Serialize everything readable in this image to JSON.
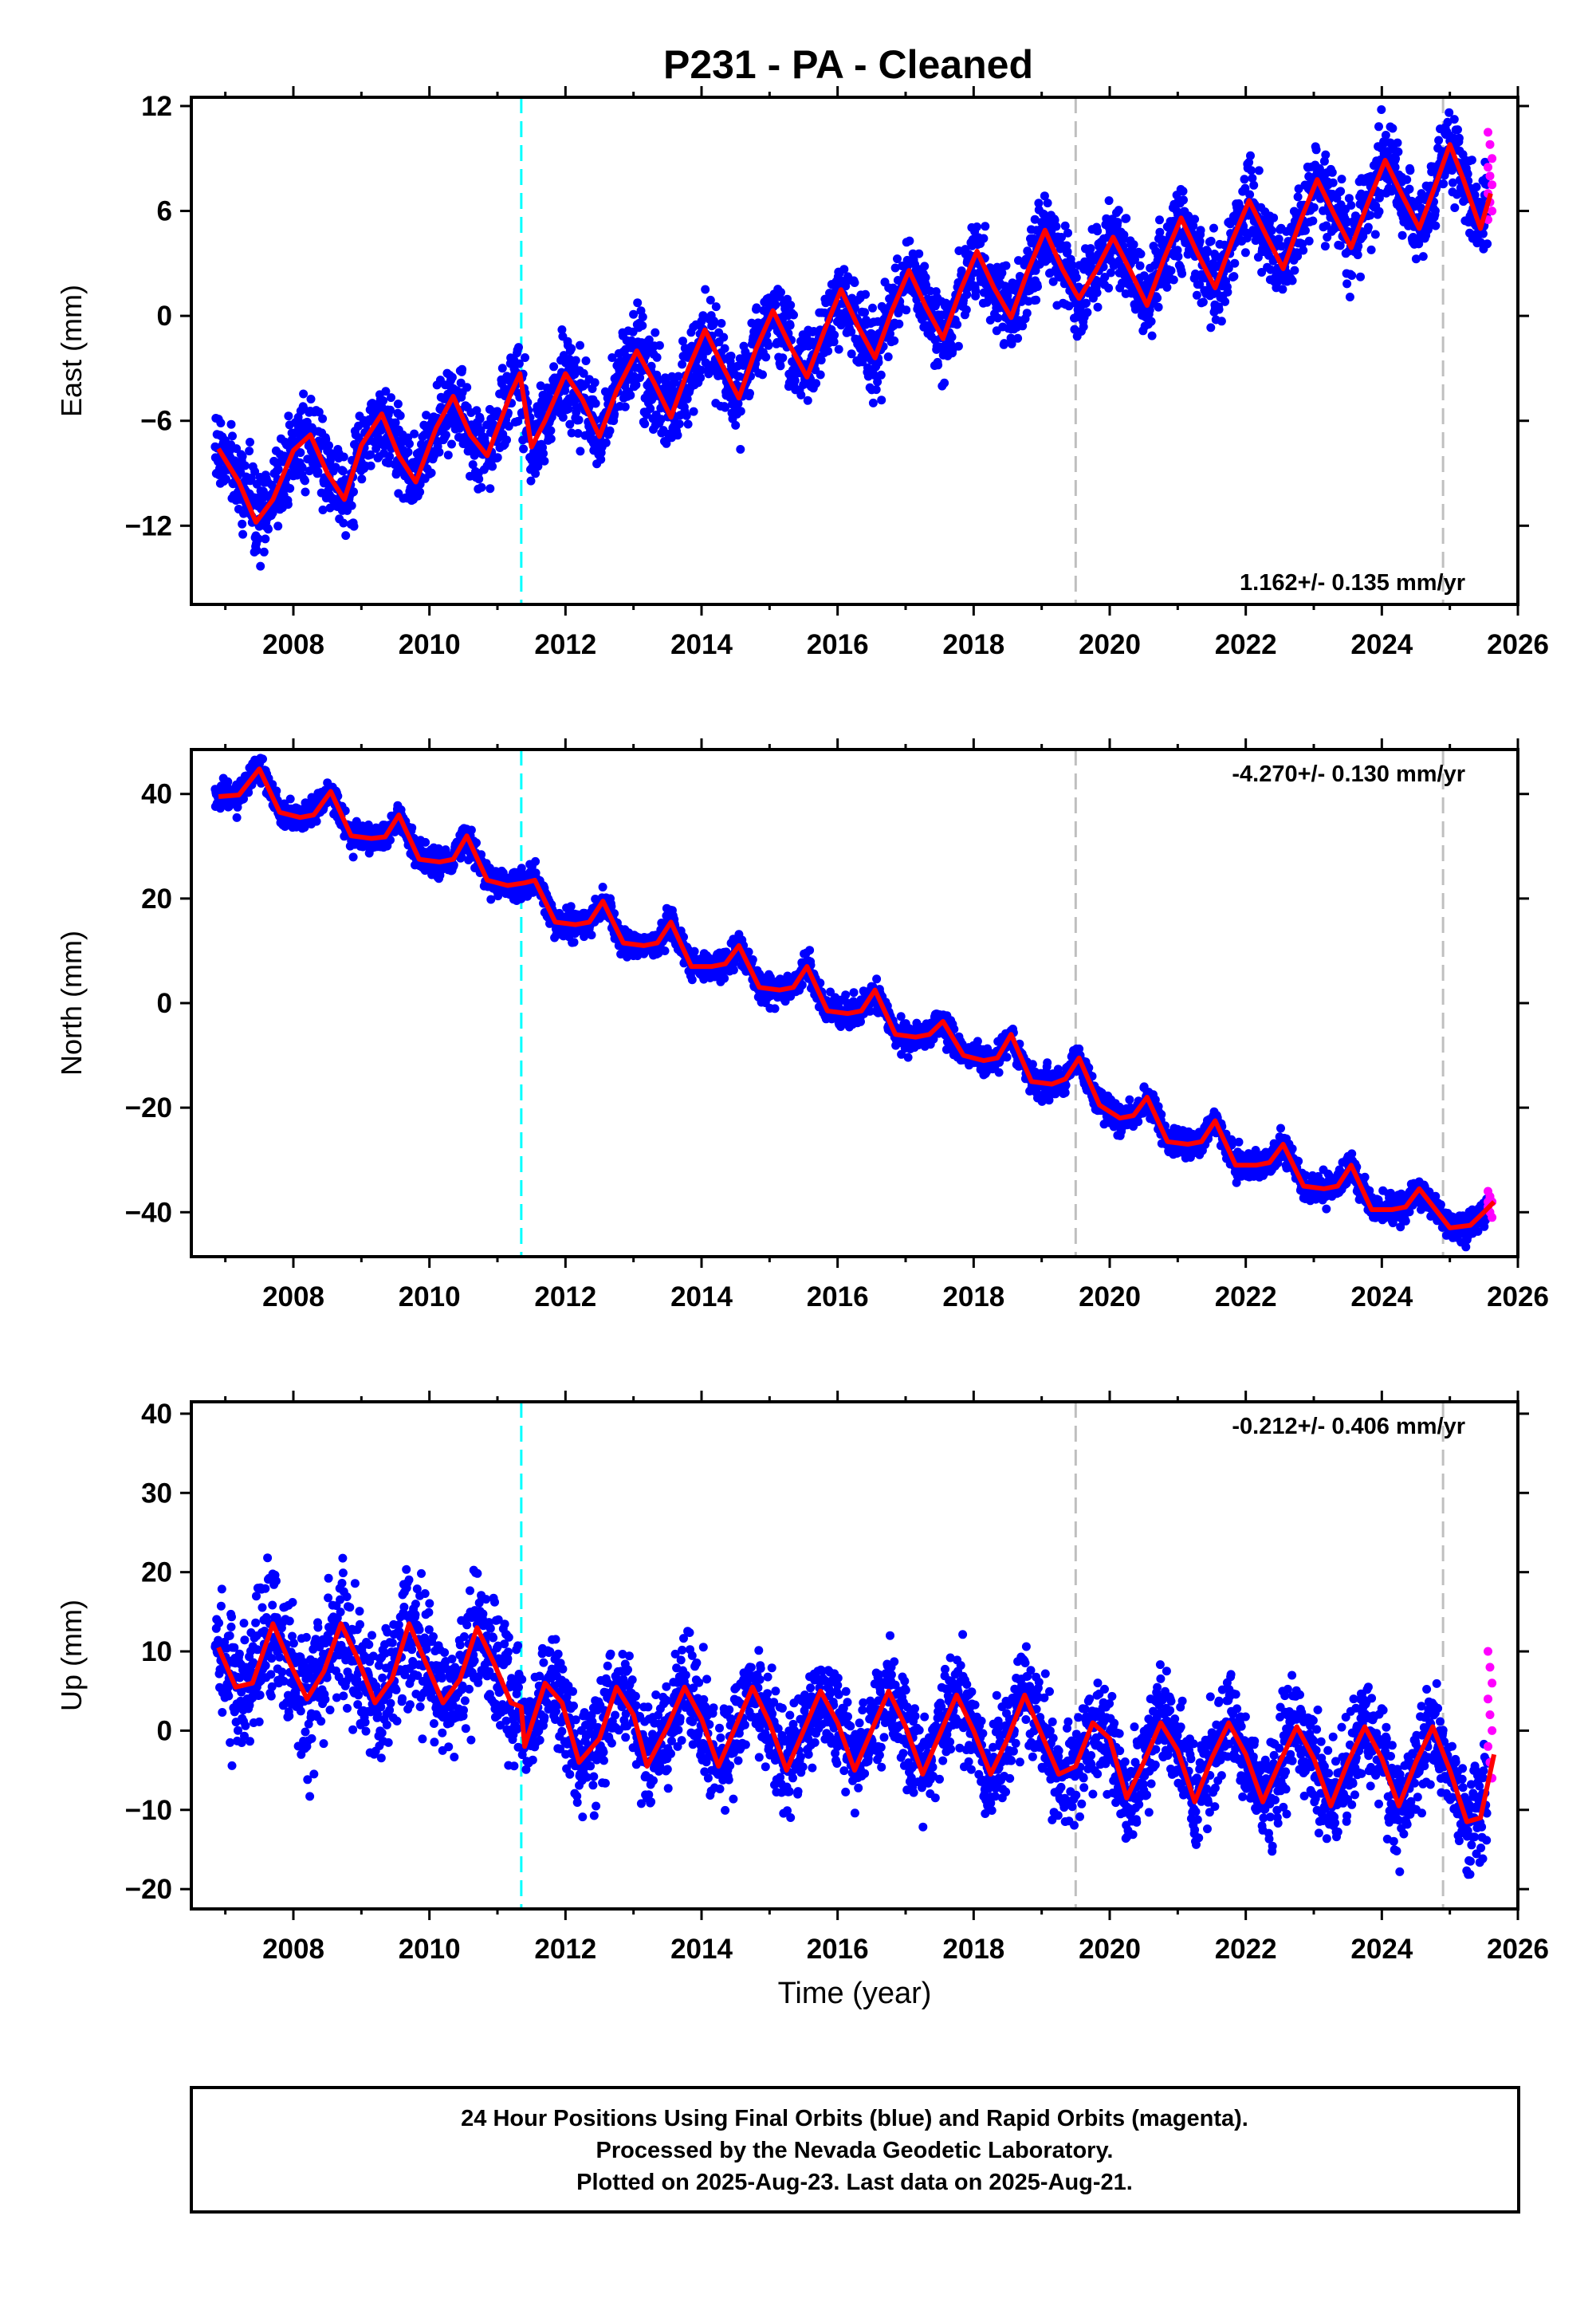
{
  "title": "P231  - PA - Cleaned",
  "colors": {
    "final_orbits": "#0000ff",
    "rapid_orbits": "#ff00ff",
    "model": "#ff0000",
    "antenna_change": "#00ffff",
    "equipment_change": "#bfbfbf"
  },
  "chart_data": [
    {
      "type": "scatter",
      "component": "East",
      "ylabel": "East (mm)",
      "ylim": [
        -16.5,
        12.5
      ],
      "yticks": [
        -12,
        -6,
        0,
        6,
        12
      ],
      "xlim": [
        2006.5,
        2026
      ],
      "xticks": [
        2008,
        2010,
        2012,
        2014,
        2016,
        2018,
        2020,
        2022,
        2024,
        2026
      ],
      "rate_label": "1.162+/- 0.135 mm/yr",
      "rate_position": "bottom-right",
      "trend": {
        "intercept_2007": -7.6,
        "rate": 0.93
      },
      "seasonal_amplitude": 2.4,
      "offsets": [
        {
          "at": 2019.5,
          "delta": -1.2
        }
      ],
      "rapid_points": [
        10.5,
        9.8,
        9.0,
        8.5,
        8.0,
        7.5,
        7.0,
        6.5,
        6.0,
        5.5
      ],
      "model_points": [
        [
          2006.9,
          -7.6
        ],
        [
          2007.2,
          -9.5
        ],
        [
          2007.45,
          -11.8
        ],
        [
          2007.7,
          -10.5
        ],
        [
          2008.0,
          -7.7
        ],
        [
          2008.25,
          -6.8
        ],
        [
          2008.5,
          -9.0
        ],
        [
          2008.75,
          -10.5
        ],
        [
          2009.0,
          -7.4
        ],
        [
          2009.3,
          -5.6
        ],
        [
          2009.55,
          -8.0
        ],
        [
          2009.8,
          -9.5
        ],
        [
          2010.1,
          -6.4
        ],
        [
          2010.35,
          -4.6
        ],
        [
          2010.6,
          -6.8
        ],
        [
          2010.85,
          -8.0
        ],
        [
          2011.2,
          -4.4
        ],
        [
          2011.33,
          -3.3
        ],
        [
          2011.5,
          -7.5
        ],
        [
          2011.7,
          -6.0
        ],
        [
          2012.0,
          -3.3
        ],
        [
          2012.25,
          -4.8
        ],
        [
          2012.5,
          -6.9
        ],
        [
          2012.75,
          -4.3
        ],
        [
          2013.05,
          -2.0
        ],
        [
          2013.3,
          -3.8
        ],
        [
          2013.55,
          -5.8
        ],
        [
          2013.8,
          -3.1
        ],
        [
          2014.05,
          -0.8
        ],
        [
          2014.3,
          -2.8
        ],
        [
          2014.55,
          -4.7
        ],
        [
          2014.8,
          -1.9
        ],
        [
          2015.05,
          0.3
        ],
        [
          2015.3,
          -1.7
        ],
        [
          2015.55,
          -3.5
        ],
        [
          2015.8,
          -0.9
        ],
        [
          2016.05,
          1.5
        ],
        [
          2016.3,
          -0.6
        ],
        [
          2016.55,
          -2.4
        ],
        [
          2016.8,
          0.3
        ],
        [
          2017.05,
          2.6
        ],
        [
          2017.3,
          0.5
        ],
        [
          2017.55,
          -1.3
        ],
        [
          2017.8,
          1.4
        ],
        [
          2018.05,
          3.7
        ],
        [
          2018.3,
          1.6
        ],
        [
          2018.55,
          -0.1
        ],
        [
          2018.8,
          2.6
        ],
        [
          2019.05,
          4.9
        ],
        [
          2019.3,
          2.7
        ],
        [
          2019.5,
          1.3
        ],
        [
          2019.55,
          1.0
        ],
        [
          2019.8,
          2.6
        ],
        [
          2020.05,
          4.5
        ],
        [
          2020.3,
          2.6
        ],
        [
          2020.55,
          0.6
        ],
        [
          2020.8,
          3.3
        ],
        [
          2021.05,
          5.6
        ],
        [
          2021.3,
          3.5
        ],
        [
          2021.55,
          1.6
        ],
        [
          2021.8,
          4.3
        ],
        [
          2022.05,
          6.6
        ],
        [
          2022.3,
          4.6
        ],
        [
          2022.55,
          2.7
        ],
        [
          2022.8,
          5.4
        ],
        [
          2023.05,
          7.8
        ],
        [
          2023.3,
          5.8
        ],
        [
          2023.55,
          3.9
        ],
        [
          2023.8,
          6.5
        ],
        [
          2024.05,
          8.9
        ],
        [
          2024.3,
          6.9
        ],
        [
          2024.55,
          5.0
        ],
        [
          2024.8,
          7.6
        ],
        [
          2025.0,
          9.8
        ],
        [
          2025.2,
          7.8
        ],
        [
          2025.45,
          5.0
        ],
        [
          2025.6,
          7.0
        ]
      ]
    },
    {
      "type": "scatter",
      "component": "North",
      "ylabel": "North (mm)",
      "ylim": [
        -48.5,
        48.5
      ],
      "yticks": [
        -40,
        -20,
        0,
        20,
        40
      ],
      "xlim": [
        2006.5,
        2026
      ],
      "xticks": [
        2008,
        2010,
        2012,
        2014,
        2016,
        2018,
        2020,
        2022,
        2024,
        2026
      ],
      "rate_label": "-4.270+/- 0.130 mm/yr",
      "rate_position": "top-right",
      "trend": {
        "intercept_2007": 40.0,
        "rate": -4.5
      },
      "seasonal_amplitude": 3.5,
      "offsets": [],
      "rapid_points": [
        -36,
        -37,
        -38,
        -39,
        -40,
        -41,
        -38,
        -37
      ],
      "model_points": [
        [
          2006.9,
          39.5
        ],
        [
          2007.2,
          39.8
        ],
        [
          2007.5,
          44.8
        ],
        [
          2007.8,
          36.5
        ],
        [
          2008.1,
          35.5
        ],
        [
          2008.3,
          36.0
        ],
        [
          2008.55,
          40.5
        ],
        [
          2008.85,
          32.0
        ],
        [
          2009.15,
          31.5
        ],
        [
          2009.35,
          31.8
        ],
        [
          2009.55,
          36.0
        ],
        [
          2009.85,
          27.5
        ],
        [
          2010.15,
          27.0
        ],
        [
          2010.35,
          27.5
        ],
        [
          2010.55,
          32.0
        ],
        [
          2010.85,
          23.5
        ],
        [
          2011.15,
          22.5
        ],
        [
          2011.4,
          23.0
        ],
        [
          2011.55,
          23.5
        ],
        [
          2011.85,
          15.5
        ],
        [
          2012.15,
          15.0
        ],
        [
          2012.35,
          15.5
        ],
        [
          2012.55,
          19.5
        ],
        [
          2012.85,
          11.5
        ],
        [
          2013.15,
          11.0
        ],
        [
          2013.35,
          11.5
        ],
        [
          2013.55,
          15.5
        ],
        [
          2013.85,
          7.0
        ],
        [
          2014.15,
          7.0
        ],
        [
          2014.35,
          7.5
        ],
        [
          2014.55,
          11.0
        ],
        [
          2014.85,
          3.0
        ],
        [
          2015.15,
          2.5
        ],
        [
          2015.35,
          3.0
        ],
        [
          2015.55,
          7.0
        ],
        [
          2015.85,
          -1.5
        ],
        [
          2016.15,
          -2.0
        ],
        [
          2016.35,
          -1.5
        ],
        [
          2016.55,
          2.5
        ],
        [
          2016.85,
          -6.0
        ],
        [
          2017.15,
          -6.5
        ],
        [
          2017.35,
          -6.0
        ],
        [
          2017.55,
          -3.5
        ],
        [
          2017.85,
          -10.0
        ],
        [
          2018.15,
          -11.0
        ],
        [
          2018.35,
          -10.5
        ],
        [
          2018.55,
          -6.0
        ],
        [
          2018.85,
          -15.0
        ],
        [
          2019.15,
          -15.5
        ],
        [
          2019.35,
          -14.5
        ],
        [
          2019.55,
          -10.5
        ],
        [
          2019.85,
          -19.5
        ],
        [
          2020.15,
          -22.0
        ],
        [
          2020.35,
          -21.5
        ],
        [
          2020.55,
          -18.0
        ],
        [
          2020.85,
          -26.5
        ],
        [
          2021.15,
          -27.0
        ],
        [
          2021.35,
          -26.5
        ],
        [
          2021.55,
          -22.5
        ],
        [
          2021.85,
          -31.0
        ],
        [
          2022.15,
          -31.0
        ],
        [
          2022.35,
          -30.5
        ],
        [
          2022.55,
          -27.0
        ],
        [
          2022.85,
          -35.0
        ],
        [
          2023.15,
          -35.5
        ],
        [
          2023.35,
          -35.0
        ],
        [
          2023.55,
          -31.0
        ],
        [
          2023.85,
          -39.5
        ],
        [
          2024.15,
          -39.5
        ],
        [
          2024.35,
          -39.0
        ],
        [
          2024.55,
          -35.5
        ],
        [
          2024.85,
          -40.5
        ],
        [
          2025.0,
          -43.0
        ],
        [
          2025.3,
          -42.5
        ],
        [
          2025.5,
          -40.0
        ],
        [
          2025.65,
          -38.0
        ]
      ]
    },
    {
      "type": "scatter",
      "component": "Up",
      "ylabel": "Up (mm)",
      "ylim": [
        -22.5,
        41.5
      ],
      "yticks": [
        -20,
        -10,
        0,
        10,
        20,
        30,
        40
      ],
      "xlim": [
        2006.5,
        2026
      ],
      "xticks": [
        2008,
        2010,
        2012,
        2014,
        2016,
        2018,
        2020,
        2022,
        2024,
        2026
      ],
      "xlabel": "Time (year)",
      "rate_label": "-0.212+/- 0.406 mm/yr",
      "rate_position": "top-right",
      "trend": {
        "intercept_2007": 8.0,
        "rate": -0.2
      },
      "seasonal_amplitude": 5.0,
      "offsets": [
        {
          "at": 2011.35,
          "delta": -8.0
        }
      ],
      "rapid_points": [
        10,
        8,
        6,
        4,
        2,
        0,
        -2,
        -4,
        -6
      ],
      "model_points": [
        [
          2006.9,
          10.5
        ],
        [
          2007.15,
          5.5
        ],
        [
          2007.4,
          6.0
        ],
        [
          2007.7,
          13.5
        ],
        [
          2007.95,
          8.5
        ],
        [
          2008.2,
          4.0
        ],
        [
          2008.45,
          7.5
        ],
        [
          2008.7,
          13.5
        ],
        [
          2008.95,
          9.0
        ],
        [
          2009.2,
          3.5
        ],
        [
          2009.45,
          6.5
        ],
        [
          2009.7,
          13.5
        ],
        [
          2009.95,
          8.5
        ],
        [
          2010.2,
          3.5
        ],
        [
          2010.45,
          6.5
        ],
        [
          2010.7,
          13.0
        ],
        [
          2010.95,
          8.5
        ],
        [
          2011.2,
          3.5
        ],
        [
          2011.35,
          3.0
        ],
        [
          2011.4,
          -2.0
        ],
        [
          2011.7,
          6.0
        ],
        [
          2011.95,
          3.5
        ],
        [
          2012.2,
          -4.0
        ],
        [
          2012.5,
          -1.0
        ],
        [
          2012.75,
          5.5
        ],
        [
          2013.0,
          2.0
        ],
        [
          2013.2,
          -4.5
        ],
        [
          2013.5,
          0.5
        ],
        [
          2013.75,
          5.5
        ],
        [
          2014.0,
          1.5
        ],
        [
          2014.25,
          -4.5
        ],
        [
          2014.5,
          0.5
        ],
        [
          2014.75,
          5.5
        ],
        [
          2015.0,
          1.0
        ],
        [
          2015.25,
          -5.0
        ],
        [
          2015.5,
          0.0
        ],
        [
          2015.75,
          5.0
        ],
        [
          2016.0,
          1.0
        ],
        [
          2016.25,
          -5.0
        ],
        [
          2016.5,
          0.0
        ],
        [
          2016.75,
          5.0
        ],
        [
          2017.0,
          0.5
        ],
        [
          2017.25,
          -5.5
        ],
        [
          2017.5,
          -0.5
        ],
        [
          2017.75,
          4.5
        ],
        [
          2018.0,
          0.0
        ],
        [
          2018.25,
          -5.5
        ],
        [
          2018.5,
          -1.0
        ],
        [
          2018.75,
          4.5
        ],
        [
          2019.0,
          -0.5
        ],
        [
          2019.25,
          -5.5
        ],
        [
          2019.5,
          -4.5
        ],
        [
          2019.75,
          1.0
        ],
        [
          2020.0,
          -1.0
        ],
        [
          2020.25,
          -8.5
        ],
        [
          2020.5,
          -4.0
        ],
        [
          2020.75,
          1.0
        ],
        [
          2021.0,
          -2.5
        ],
        [
          2021.25,
          -9.0
        ],
        [
          2021.5,
          -3.5
        ],
        [
          2021.75,
          1.0
        ],
        [
          2022.0,
          -3.0
        ],
        [
          2022.25,
          -9.0
        ],
        [
          2022.5,
          -4.0
        ],
        [
          2022.75,
          0.5
        ],
        [
          2023.0,
          -3.5
        ],
        [
          2023.25,
          -9.5
        ],
        [
          2023.5,
          -4.0
        ],
        [
          2023.75,
          0.5
        ],
        [
          2024.0,
          -3.5
        ],
        [
          2024.25,
          -9.5
        ],
        [
          2024.5,
          -4.0
        ],
        [
          2024.75,
          0.5
        ],
        [
          2025.0,
          -5.0
        ],
        [
          2025.25,
          -11.5
        ],
        [
          2025.45,
          -11.0
        ],
        [
          2025.65,
          -3.0
        ]
      ]
    }
  ],
  "antenna_change_years": [
    2011.35
  ],
  "equipment_change_years": [
    2019.5,
    2024.9
  ],
  "footer": {
    "line1": "24 Hour Positions Using Final Orbits (blue) and Rapid Orbits (magenta).",
    "line2": "Processed by the Nevada Geodetic Laboratory.",
    "line3": "Plotted on 2025-Aug-23. Last data on 2025-Aug-21."
  }
}
